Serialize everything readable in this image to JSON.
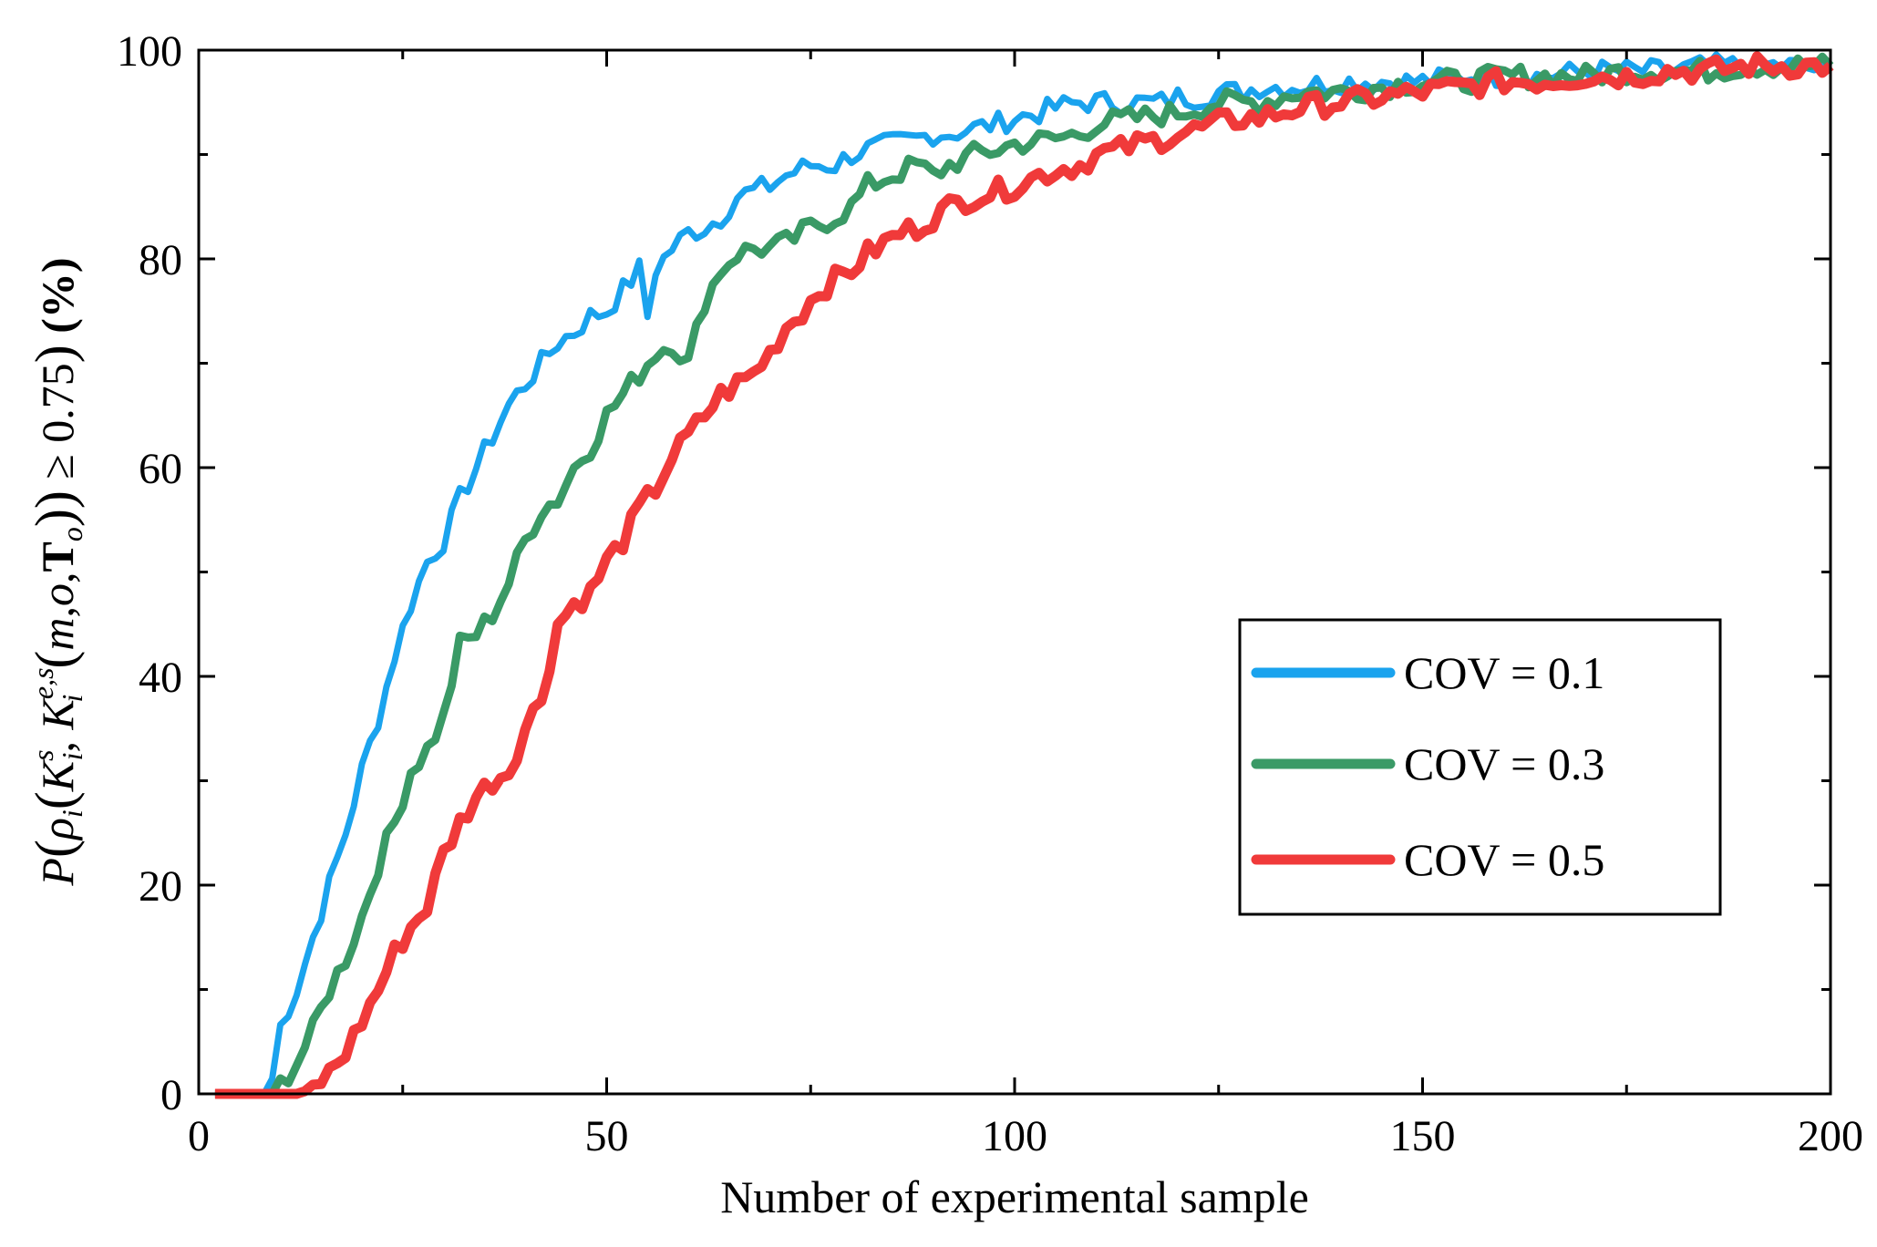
{
  "chart_data": {
    "type": "line",
    "xlabel": "Number of experimental sample",
    "ylabel": "P(ρ_i(K_i^s, K_i^{e,s}(m,o,T_o)) ≥ 0.75) (%)",
    "xlim": [
      0,
      200
    ],
    "ylim": [
      0,
      100
    ],
    "xticks": [
      "0",
      "50",
      "100",
      "150",
      "200"
    ],
    "yticks": [
      "0",
      "20",
      "40",
      "60",
      "80",
      "100"
    ],
    "grid": false,
    "legend_position": "right-middle",
    "series": [
      {
        "name": "COV = 0.1",
        "color": "#1aa3ee",
        "x": [
          2,
          8,
          9,
          10,
          12,
          14,
          16,
          18,
          20,
          22,
          24,
          26,
          28,
          30,
          32,
          34,
          36,
          38,
          40,
          42,
          44,
          46,
          48,
          50,
          52,
          54,
          55,
          56,
          58,
          60,
          62,
          64,
          66,
          68,
          70,
          72,
          75,
          78,
          80,
          82,
          85,
          88,
          90,
          92,
          95,
          98,
          100,
          103,
          105,
          108,
          110,
          113,
          115,
          118,
          120,
          123,
          125,
          128,
          130,
          135,
          140,
          145,
          150,
          155,
          160,
          165,
          170,
          175,
          180,
          185,
          190,
          195,
          200
        ],
        "y": [
          0,
          0,
          1.5,
          6.5,
          10,
          15,
          20,
          25,
          31,
          36,
          42,
          47,
          51,
          53,
          57,
          60,
          63,
          66,
          68,
          70,
          72,
          73,
          74.5,
          75,
          77,
          79,
          74.5,
          79,
          81,
          82.5,
          83,
          84,
          86,
          86.5,
          87,
          88,
          89,
          89,
          90,
          90.5,
          91,
          91.5,
          92,
          92,
          92.5,
          93,
          93.5,
          94,
          94.5,
          95,
          95,
          95,
          95,
          95,
          95.5,
          95.5,
          96,
          96,
          96.5,
          96.5,
          97,
          97,
          97,
          97.5,
          97.5,
          97.5,
          98,
          98,
          98,
          98.5,
          98.5,
          98.5,
          98
        ]
      },
      {
        "name": "COV = 0.3",
        "color": "#3a9a66",
        "x": [
          2,
          9,
          10,
          12,
          14,
          16,
          18,
          20,
          22,
          24,
          26,
          28,
          30,
          32,
          34,
          36,
          38,
          40,
          42,
          44,
          46,
          48,
          50,
          52,
          54,
          56,
          58,
          60,
          62,
          64,
          66,
          68,
          70,
          72,
          75,
          78,
          80,
          82,
          85,
          88,
          90,
          92,
          95,
          98,
          100,
          105,
          108,
          110,
          115,
          120,
          125,
          130,
          135,
          140,
          145,
          150,
          155,
          160,
          165,
          170,
          175,
          180,
          185,
          190,
          195,
          200
        ],
        "y": [
          0,
          0,
          1,
          3,
          6,
          10,
          13,
          17,
          22,
          26,
          31,
          33,
          36,
          43,
          44,
          46,
          49,
          53,
          56,
          57,
          60,
          62,
          65,
          67,
          69,
          71,
          72,
          70,
          76,
          79,
          80.5,
          81,
          81,
          81.5,
          83,
          84,
          85,
          87,
          88,
          89,
          88,
          89,
          90,
          90.5,
          91,
          91.5,
          92,
          93,
          93.5,
          94,
          95,
          95,
          96,
          96,
          96.5,
          97,
          97,
          97.5,
          97.5,
          97.5,
          98,
          98,
          98,
          98.5,
          98.5,
          98.5
        ]
      },
      {
        "name": "COV = 0.5",
        "color": "#f03a3a",
        "x": [
          2,
          12,
          14,
          16,
          18,
          20,
          22,
          24,
          26,
          28,
          30,
          32,
          34,
          36,
          38,
          40,
          42,
          44,
          46,
          48,
          50,
          52,
          54,
          56,
          58,
          60,
          62,
          64,
          66,
          68,
          70,
          72,
          74,
          76,
          78,
          80,
          82,
          84,
          86,
          88,
          90,
          92,
          95,
          98,
          100,
          103,
          105,
          108,
          110,
          113,
          115,
          118,
          120,
          123,
          125,
          128,
          130,
          135,
          140,
          145,
          150,
          155,
          160,
          165,
          170,
          175,
          180,
          185,
          190,
          195,
          200
        ],
        "y": [
          0,
          0,
          0.5,
          2,
          4,
          7,
          10,
          13.5,
          16,
          18,
          23,
          26,
          28.5,
          30,
          31,
          35,
          38,
          45,
          47,
          48,
          51,
          53,
          56,
          58,
          61,
          63,
          65,
          67,
          68,
          69,
          71,
          73.5,
          75,
          77,
          78,
          79,
          80.5,
          81.5,
          82.5,
          83,
          84,
          85,
          86,
          86.5,
          87,
          88,
          88.5,
          89,
          90,
          90.5,
          91,
          91.5,
          92,
          92.5,
          93,
          93.5,
          93.5,
          94.5,
          95,
          95.5,
          96,
          96.5,
          97,
          97,
          97.5,
          97.5,
          98,
          98,
          98.5,
          98.5,
          98.5
        ]
      }
    ]
  }
}
